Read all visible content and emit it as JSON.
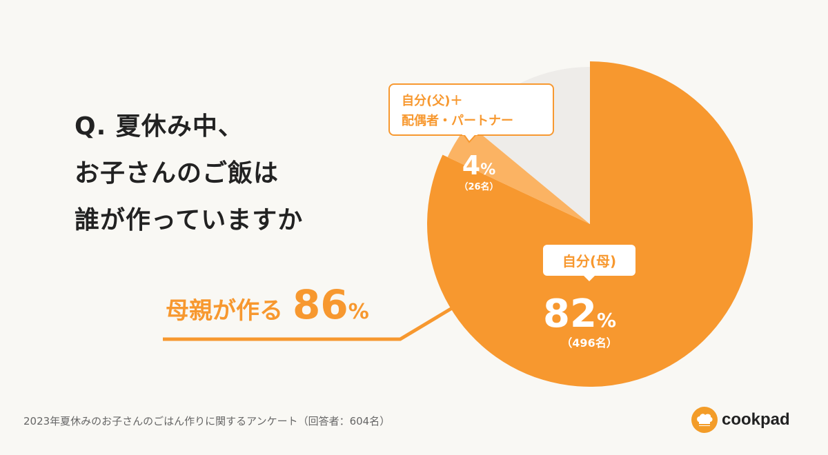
{
  "question": {
    "lines": [
      "Q. 夏休み中、",
      "お子さんのご飯は",
      "誰が作っていますか"
    ]
  },
  "headline": {
    "label": "母親が作る",
    "value": "86",
    "unit": "%"
  },
  "chart_data": {
    "type": "pie",
    "title": "Q. 夏休み中、お子さんのご飯は誰が作っていますか",
    "slices": [
      {
        "label": "自分(母)",
        "percent": 82,
        "count": "（496名）",
        "color": "#f7982f"
      },
      {
        "label": "自分(父)＋配偶者・パートナー",
        "label_lines": [
          "自分(父)＋",
          "配偶者・パートナー"
        ],
        "percent": 4,
        "count": "（26名）",
        "color": "#fbb363"
      },
      {
        "label": "",
        "percent": 14,
        "count": "",
        "color": "#eeece9"
      }
    ],
    "percent_suffix": "%"
  },
  "footer": {
    "note": "2023年夏休みのお子さんのごはん作りに関するアンケート（回答者：604名）"
  },
  "brand": {
    "name": "cookpad",
    "icon": "chef-hat-icon",
    "color": "#f39c28"
  }
}
